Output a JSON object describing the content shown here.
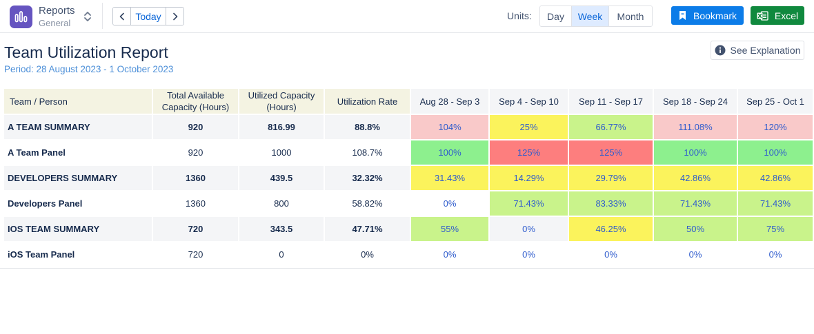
{
  "app": {
    "title": "Reports",
    "subtitle": "General",
    "icon": "bar-chart-icon",
    "accent": "#6554c0"
  },
  "nav": {
    "prev_icon": "chevron-left-icon",
    "today_label": "Today",
    "next_icon": "chevron-right-icon"
  },
  "units": {
    "label": "Units:",
    "options": [
      "Day",
      "Week",
      "Month"
    ],
    "selected": "Week"
  },
  "actions": {
    "bookmark_label": "Bookmark",
    "bookmark_color": "#0c7ce8",
    "excel_label": "Excel",
    "excel_color": "#10893e"
  },
  "report": {
    "title": "Team Utilization Report",
    "period": "Period: 28 August 2023 - 1 October 2023",
    "explain_label": "See Explanation"
  },
  "table": {
    "headers": {
      "name": "Team / Person",
      "capacity": "Total Available Capacity (Hours)",
      "utilized": "Utilized Capacity (Hours)",
      "rate": "Utilization Rate"
    },
    "weeks": [
      "Aug 28 - Sep 3",
      "Sep 4 - Sep 10",
      "Sep 11 - Sep 17",
      "Sep 18 - Sep 24",
      "Sep 25 - Oct 1"
    ],
    "status_colors": {
      "over": "#f9c9c9",
      "low": "#fbf35c",
      "good": "#c9f38b",
      "optimal": "#8df08e",
      "critical": "#fd7e7e",
      "none": "#ffffff",
      "none_summary": "#f4f5f7"
    },
    "rows": [
      {
        "type": "summary",
        "name": "A TEAM SUMMARY",
        "capacity": "920",
        "utilized": "816.99",
        "rate": "88.8%",
        "weeks": [
          {
            "v": "104%",
            "s": "over"
          },
          {
            "v": "25%",
            "s": "low"
          },
          {
            "v": "66.77%",
            "s": "good"
          },
          {
            "v": "111.08%",
            "s": "over"
          },
          {
            "v": "120%",
            "s": "over"
          }
        ]
      },
      {
        "type": "panel",
        "name": "A Team Panel",
        "capacity": "920",
        "utilized": "1000",
        "rate": "108.7%",
        "weeks": [
          {
            "v": "100%",
            "s": "optimal"
          },
          {
            "v": "125%",
            "s": "critical"
          },
          {
            "v": "125%",
            "s": "critical"
          },
          {
            "v": "100%",
            "s": "optimal"
          },
          {
            "v": "100%",
            "s": "optimal"
          }
        ]
      },
      {
        "type": "summary",
        "name": "DEVELOPERS SUMMARY",
        "capacity": "1360",
        "utilized": "439.5",
        "rate": "32.32%",
        "weeks": [
          {
            "v": "31.43%",
            "s": "low"
          },
          {
            "v": "14.29%",
            "s": "low"
          },
          {
            "v": "29.79%",
            "s": "low"
          },
          {
            "v": "42.86%",
            "s": "low"
          },
          {
            "v": "42.86%",
            "s": "low"
          }
        ]
      },
      {
        "type": "panel",
        "name": "Developers Panel",
        "capacity": "1360",
        "utilized": "800",
        "rate": "58.82%",
        "weeks": [
          {
            "v": "0%",
            "s": "none"
          },
          {
            "v": "71.43%",
            "s": "good"
          },
          {
            "v": "83.33%",
            "s": "good"
          },
          {
            "v": "71.43%",
            "s": "good"
          },
          {
            "v": "71.43%",
            "s": "good"
          }
        ]
      },
      {
        "type": "summary",
        "name": "IOS TEAM SUMMARY",
        "capacity": "720",
        "utilized": "343.5",
        "rate": "47.71%",
        "weeks": [
          {
            "v": "55%",
            "s": "good"
          },
          {
            "v": "0%",
            "s": "none_summary"
          },
          {
            "v": "46.25%",
            "s": "low"
          },
          {
            "v": "50%",
            "s": "good"
          },
          {
            "v": "75%",
            "s": "good"
          }
        ]
      },
      {
        "type": "panel",
        "name": "iOS Team Panel",
        "capacity": "720",
        "utilized": "0",
        "rate": "0%",
        "weeks": [
          {
            "v": "0%",
            "s": "none"
          },
          {
            "v": "0%",
            "s": "none"
          },
          {
            "v": "0%",
            "s": "none"
          },
          {
            "v": "0%",
            "s": "none"
          },
          {
            "v": "0%",
            "s": "none"
          }
        ]
      }
    ]
  }
}
